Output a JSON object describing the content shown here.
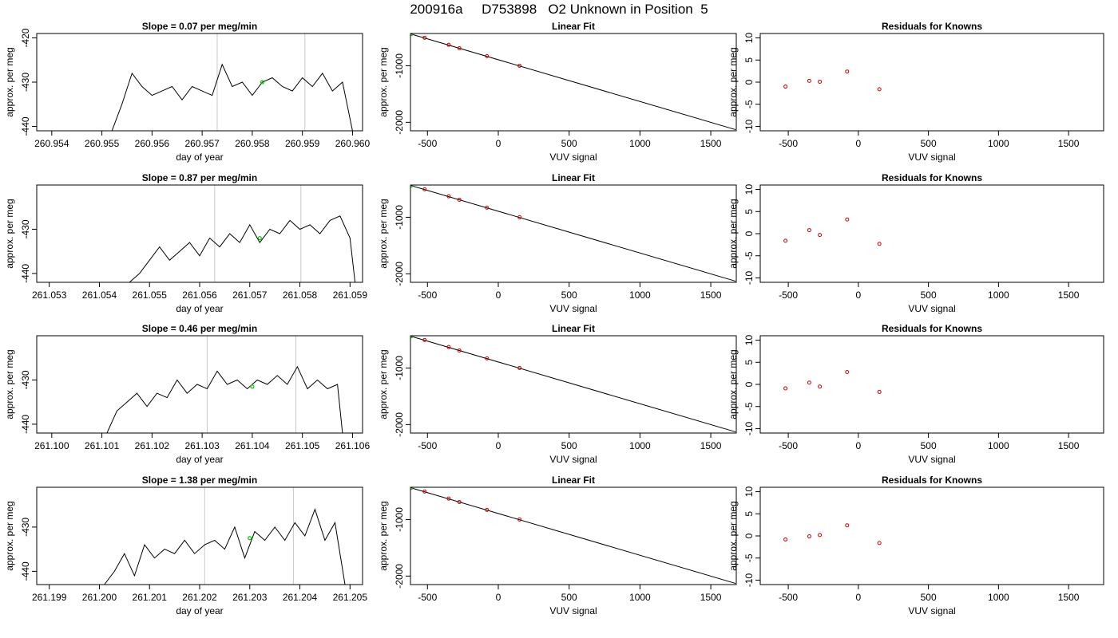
{
  "page": {
    "title": "200916a     D753898   O2 Unknown in Position  5"
  },
  "colors": {
    "line": "#000000",
    "vline": "#c8c8c8",
    "green": "#00cc00",
    "red": "#cc0000"
  },
  "chart_data": [
    {
      "type": "line",
      "title": "Slope =  0.07  per meg/min",
      "xlabel": "day of year",
      "ylabel": "approx. per meg",
      "xlim": [
        260.9537,
        260.9602
      ],
      "ylim": [
        -441.0,
        -419.0
      ],
      "x_ticks": [
        260.954,
        260.955,
        260.956,
        260.957,
        260.958,
        260.959,
        260.96
      ],
      "x_tick_labels": [
        "260.954",
        "260.955",
        "260.956",
        "260.957",
        "260.958",
        "260.959",
        "260.960"
      ],
      "y_ticks": [
        -420,
        -430,
        -440
      ],
      "y_tick_labels": [
        "-420",
        "-430",
        "-440"
      ],
      "vlines": [
        260.9573,
        260.95905
      ],
      "x": [
        260.9552,
        260.9554,
        260.9556,
        260.9558,
        260.956,
        260.9562,
        260.9564,
        260.9566,
        260.9568,
        260.957,
        260.9572,
        260.9574,
        260.9576,
        260.9578,
        260.958,
        260.9582,
        260.9584,
        260.9586,
        260.9588,
        260.959,
        260.9592,
        260.9594,
        260.9596,
        260.9598,
        260.96
      ],
      "y": [
        -441,
        -435,
        -428,
        -431,
        -433,
        -432,
        -431,
        -434,
        -431,
        -432,
        -433,
        -426,
        -431,
        -430,
        -433,
        -430,
        -429,
        -431,
        -432,
        -429,
        -431,
        -428,
        -432,
        -430,
        -441
      ],
      "point": [
        260.9582,
        -430.0
      ]
    },
    {
      "type": "scatter",
      "title": "Linear Fit",
      "xlabel": "VUV signal",
      "ylabel": "approx. per meg",
      "xlim": [
        -620,
        1680
      ],
      "ylim": [
        -2150,
        -430
      ],
      "x_ticks": [
        -500,
        0,
        500,
        1000,
        1500
      ],
      "x_tick_labels": [
        "-500",
        "0",
        "500",
        "1000",
        "1500"
      ],
      "y_ticks": [
        -1000,
        -2000
      ],
      "y_tick_labels": [
        "-1000",
        "-2000"
      ],
      "fit_line": {
        "x": [
          -615,
          1675
        ],
        "y": [
          -440,
          -2130
        ]
      },
      "points": {
        "x": [
          -520,
          -350,
          -275,
          -80,
          150
        ],
        "y": [
          -505,
          -630,
          -690,
          -830,
          -1000
        ]
      },
      "green_point": [
        -615,
        -440
      ]
    },
    {
      "type": "scatter",
      "title": "Residuals for Knowns",
      "xlabel": "VUV signal",
      "ylabel": "approx. per meg",
      "xlim": [
        -700,
        1750
      ],
      "ylim": [
        -11,
        11
      ],
      "x_ticks": [
        -500,
        0,
        500,
        1000,
        1500
      ],
      "x_tick_labels": [
        "-500",
        "0",
        "500",
        "1000",
        "1500"
      ],
      "y_ticks": [
        10,
        5,
        0,
        -5,
        -10
      ],
      "y_tick_labels": [
        "10",
        "5",
        "0",
        "-5",
        "-10"
      ],
      "points": {
        "x": [
          -520,
          -350,
          -275,
          -80,
          150
        ],
        "y": [
          -1.0,
          0.3,
          0.1,
          2.4,
          -1.6
        ]
      }
    },
    {
      "type": "line",
      "title": "Slope =  0.87  per meg/min",
      "xlabel": "day of year",
      "ylabel": "approx. per meg",
      "xlim": [
        261.05275,
        261.05925
      ],
      "ylim": [
        -442.0,
        -420.0
      ],
      "x_ticks": [
        261.053,
        261.054,
        261.055,
        261.056,
        261.057,
        261.058,
        261.059
      ],
      "x_tick_labels": [
        "261.053",
        "261.054",
        "261.055",
        "261.056",
        "261.057",
        "261.058",
        "261.059"
      ],
      "y_ticks": [
        -430,
        -440
      ],
      "y_tick_labels": [
        "-430",
        "-440"
      ],
      "vlines": [
        261.0563,
        261.05802
      ],
      "x": [
        261.0546,
        261.0548,
        261.055,
        261.0552,
        261.0554,
        261.0556,
        261.0558,
        261.056,
        261.0562,
        261.0564,
        261.0566,
        261.0568,
        261.057,
        261.0572,
        261.0574,
        261.0576,
        261.0578,
        261.058,
        261.0582,
        261.0584,
        261.0586,
        261.0588,
        261.059,
        261.0591
      ],
      "y": [
        -442,
        -440,
        -437,
        -434,
        -437,
        -435,
        -433,
        -436,
        -432,
        -434,
        -431,
        -433,
        -429,
        -433,
        -430,
        -431,
        -428,
        -430,
        -429,
        -431,
        -428,
        -427,
        -432,
        -442
      ],
      "point": [
        261.0572,
        -432.0
      ]
    },
    {
      "type": "scatter",
      "title": "Linear Fit",
      "xlabel": "VUV signal",
      "ylabel": "approx. per meg",
      "xlim": [
        -620,
        1680
      ],
      "ylim": [
        -2150,
        -430
      ],
      "x_ticks": [
        -500,
        0,
        500,
        1000,
        1500
      ],
      "x_tick_labels": [
        "-500",
        "0",
        "500",
        "1000",
        "1500"
      ],
      "y_ticks": [
        -1000,
        -2000
      ],
      "y_tick_labels": [
        "-1000",
        "-2000"
      ],
      "fit_line": {
        "x": [
          -615,
          1675
        ],
        "y": [
          -440,
          -2130
        ]
      },
      "points": {
        "x": [
          -520,
          -350,
          -275,
          -80,
          150
        ],
        "y": [
          -505,
          -630,
          -690,
          -830,
          -1000
        ]
      },
      "green_point": [
        -615,
        -440
      ]
    },
    {
      "type": "scatter",
      "title": "Residuals for Knowns",
      "xlabel": "VUV signal",
      "ylabel": "approx. per meg",
      "xlim": [
        -700,
        1750
      ],
      "ylim": [
        -11,
        11
      ],
      "x_ticks": [
        -500,
        0,
        500,
        1000,
        1500
      ],
      "x_tick_labels": [
        "-500",
        "0",
        "500",
        "1000",
        "1500"
      ],
      "y_ticks": [
        10,
        5,
        0,
        -5,
        -10
      ],
      "y_tick_labels": [
        "10",
        "5",
        "0",
        "-5",
        "-10"
      ],
      "points": {
        "x": [
          -520,
          -350,
          -275,
          -80,
          150
        ],
        "y": [
          -1.6,
          0.8,
          -0.3,
          3.2,
          -2.3
        ]
      }
    },
    {
      "type": "line",
      "title": "Slope =  0.46  per meg/min",
      "xlabel": "day of year",
      "ylabel": "approx. per meg",
      "xlim": [
        261.0997,
        261.1062
      ],
      "ylim": [
        -442.0,
        -420.0
      ],
      "x_ticks": [
        261.1,
        261.101,
        261.102,
        261.103,
        261.104,
        261.105,
        261.106
      ],
      "x_tick_labels": [
        "261.100",
        "261.101",
        "261.102",
        "261.103",
        "261.104",
        "261.105",
        "261.106"
      ],
      "y_ticks": [
        -430,
        -440
      ],
      "y_tick_labels": [
        "-430",
        "-440"
      ],
      "vlines": [
        261.1031,
        261.10487
      ],
      "x": [
        261.1011,
        261.1013,
        261.1015,
        261.1017,
        261.1019,
        261.1021,
        261.1023,
        261.1025,
        261.1027,
        261.1029,
        261.1031,
        261.1033,
        261.1035,
        261.1037,
        261.1039,
        261.1041,
        261.1043,
        261.1045,
        261.1047,
        261.1049,
        261.1051,
        261.1053,
        261.1055,
        261.1057,
        261.1058
      ],
      "y": [
        -442,
        -437,
        -435,
        -433,
        -436,
        -433,
        -434,
        -430,
        -433,
        -431,
        -432,
        -428,
        -431,
        -430,
        -432,
        -430,
        -431,
        -429,
        -431,
        -427,
        -432,
        -430,
        -432,
        -431,
        -442
      ],
      "point": [
        261.104,
        -431.5
      ]
    },
    {
      "type": "scatter",
      "title": "Linear Fit",
      "xlabel": "VUV signal",
      "ylabel": "approx. per meg",
      "xlim": [
        -620,
        1680
      ],
      "ylim": [
        -2150,
        -430
      ],
      "x_ticks": [
        -500,
        0,
        500,
        1000,
        1500
      ],
      "x_tick_labels": [
        "-500",
        "0",
        "500",
        "1000",
        "1500"
      ],
      "y_ticks": [
        -1000,
        -2000
      ],
      "y_tick_labels": [
        "-1000",
        "-2000"
      ],
      "fit_line": {
        "x": [
          -615,
          1675
        ],
        "y": [
          -440,
          -2130
        ]
      },
      "points": {
        "x": [
          -520,
          -350,
          -275,
          -80,
          150
        ],
        "y": [
          -505,
          -630,
          -690,
          -830,
          -1000
        ]
      },
      "green_point": [
        -615,
        -440
      ]
    },
    {
      "type": "scatter",
      "title": "Residuals for Knowns",
      "xlabel": "VUV signal",
      "ylabel": "approx. per meg",
      "xlim": [
        -700,
        1750
      ],
      "ylim": [
        -11,
        11
      ],
      "x_ticks": [
        -500,
        0,
        500,
        1000,
        1500
      ],
      "x_tick_labels": [
        "-500",
        "0",
        "500",
        "1000",
        "1500"
      ],
      "y_ticks": [
        10,
        5,
        0,
        -5,
        -10
      ],
      "y_tick_labels": [
        "10",
        "5",
        "0",
        "-5",
        "-10"
      ],
      "points": {
        "x": [
          -520,
          -350,
          -275,
          -80,
          150
        ],
        "y": [
          -0.9,
          0.4,
          -0.5,
          2.8,
          -1.7
        ]
      }
    },
    {
      "type": "line",
      "title": "Slope =  1.38  per meg/min",
      "xlabel": "day of year",
      "ylabel": "approx. per meg",
      "xlim": [
        261.19875,
        261.20525
      ],
      "ylim": [
        -443.0,
        -421.0
      ],
      "x_ticks": [
        261.199,
        261.2,
        261.201,
        261.202,
        261.203,
        261.204,
        261.205
      ],
      "x_tick_labels": [
        "261.199",
        "261.200",
        "261.201",
        "261.202",
        "261.203",
        "261.204",
        "261.205"
      ],
      "y_ticks": [
        -430,
        -440
      ],
      "y_tick_labels": [
        "-430",
        "-440"
      ],
      "vlines": [
        261.2021,
        261.20387
      ],
      "x": [
        261.2001,
        261.2003,
        261.2005,
        261.2007,
        261.2009,
        261.2011,
        261.2013,
        261.2015,
        261.2017,
        261.2019,
        261.2021,
        261.2023,
        261.2025,
        261.2027,
        261.2029,
        261.2031,
        261.2033,
        261.2035,
        261.2037,
        261.2039,
        261.2041,
        261.2043,
        261.2045,
        261.2047,
        261.2049
      ],
      "y": [
        -443,
        -440,
        -436,
        -441,
        -434,
        -437,
        -435,
        -436,
        -433,
        -436,
        -434,
        -433,
        -435,
        -430,
        -437,
        -431,
        -433,
        -430,
        -433,
        -429,
        -432,
        -426,
        -433,
        -429,
        -443
      ],
      "point": [
        261.203,
        -432.5
      ]
    },
    {
      "type": "scatter",
      "title": "Linear Fit",
      "xlabel": "VUV signal",
      "ylabel": "approx. per meg",
      "xlim": [
        -620,
        1680
      ],
      "ylim": [
        -2150,
        -430
      ],
      "x_ticks": [
        -500,
        0,
        500,
        1000,
        1500
      ],
      "x_tick_labels": [
        "-500",
        "0",
        "500",
        "1000",
        "1500"
      ],
      "y_ticks": [
        -1000,
        -2000
      ],
      "y_tick_labels": [
        "-1000",
        "-2000"
      ],
      "fit_line": {
        "x": [
          -615,
          1675
        ],
        "y": [
          -440,
          -2130
        ]
      },
      "points": {
        "x": [
          -520,
          -350,
          -275,
          -80,
          150
        ],
        "y": [
          -505,
          -630,
          -690,
          -830,
          -1000
        ]
      },
      "green_point": [
        -615,
        -440
      ]
    },
    {
      "type": "scatter",
      "title": "Residuals for Knowns",
      "xlabel": "VUV signal",
      "ylabel": "approx. per meg",
      "xlim": [
        -700,
        1750
      ],
      "ylim": [
        -11,
        11
      ],
      "x_ticks": [
        -500,
        0,
        500,
        1000,
        1500
      ],
      "x_tick_labels": [
        "-500",
        "0",
        "500",
        "1000",
        "1500"
      ],
      "y_ticks": [
        10,
        5,
        0,
        -5,
        -10
      ],
      "y_tick_labels": [
        "10",
        "5",
        "0",
        "-5",
        "-10"
      ],
      "points": {
        "x": [
          -520,
          -350,
          -275,
          -80,
          150
        ],
        "y": [
          -0.8,
          -0.1,
          0.2,
          2.4,
          -1.6
        ]
      }
    }
  ]
}
